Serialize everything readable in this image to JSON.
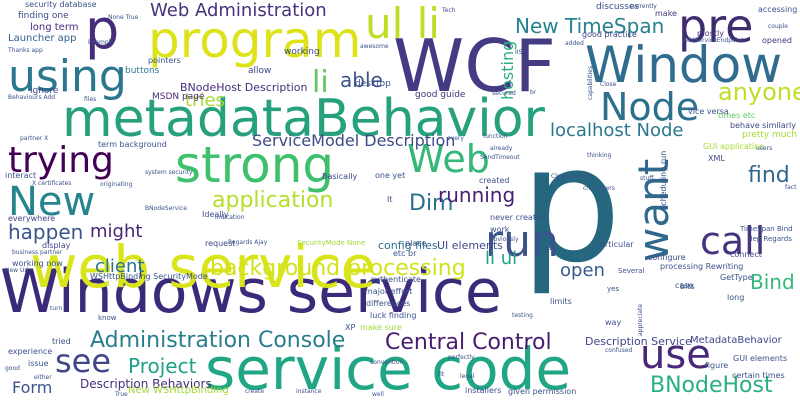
{
  "title": "",
  "words": [
    {
      "text": "Windows service",
      "color": "#3b2a7a"
    },
    {
      "text": "p",
      "color": "#25677f"
    },
    {
      "text": "web service",
      "color": "#d9e41a"
    },
    {
      "text": "metadataBehavior",
      "color": "#27a07e"
    },
    {
      "text": "service code",
      "color": "#21a685"
    },
    {
      "text": "strong",
      "color": "#3ec06d"
    },
    {
      "text": "WCF",
      "color": "#433c84"
    },
    {
      "text": "Window",
      "color": "#2f6c8e"
    },
    {
      "text": "program",
      "color": "#dde318"
    },
    {
      "text": "p",
      "color": "#472c7a"
    },
    {
      "text": "Node",
      "color": "#2d708e"
    },
    {
      "text": "pre",
      "color": "#3e2c6e"
    },
    {
      "text": "ul li",
      "color": "#c0dd23"
    },
    {
      "text": "using",
      "color": "#2a778e"
    },
    {
      "text": "trying",
      "color": "#440154"
    },
    {
      "text": "New",
      "color": "#25858e"
    },
    {
      "text": "Web",
      "color": "#35b779"
    },
    {
      "text": "want",
      "color": "#31688e"
    },
    {
      "text": "run",
      "color": "#3b528b"
    },
    {
      "text": "use",
      "color": "#482878"
    },
    {
      "text": "call",
      "color": "#46337e"
    },
    {
      "text": "see",
      "color": "#3f4788"
    },
    {
      "text": "Web Administration",
      "color": "#46327e"
    },
    {
      "text": "li",
      "color": "#5ec962"
    },
    {
      "text": "able",
      "color": "#3b528b"
    },
    {
      "text": "New TimeSpan",
      "color": "#26828e"
    },
    {
      "text": "anyone",
      "color": "#bddf26"
    },
    {
      "text": "find",
      "color": "#31688e"
    },
    {
      "text": "Bind",
      "color": "#35b779"
    },
    {
      "text": "background processing",
      "color": "#d2e21b"
    },
    {
      "text": "Administration Console",
      "color": "#287d8e"
    },
    {
      "text": "Central Control",
      "color": "#481d6f"
    },
    {
      "text": "localhost Node",
      "color": "#2a788e"
    },
    {
      "text": "application",
      "color": "#b5de2b"
    },
    {
      "text": "Project",
      "color": "#1fa187"
    },
    {
      "text": "BNodeHost",
      "color": "#2ab07f"
    },
    {
      "text": "ServiceModel Description",
      "color": "#3e4a89"
    },
    {
      "text": "client",
      "color": "#2c728e"
    },
    {
      "text": "might",
      "color": "#482475"
    },
    {
      "text": "happen",
      "color": "#39568c"
    },
    {
      "text": "Dim",
      "color": "#2d708e"
    },
    {
      "text": "running",
      "color": "#482173"
    },
    {
      "text": "li ul",
      "color": "#20a386"
    },
    {
      "text": "open",
      "color": "#38598c"
    },
    {
      "text": "tries",
      "color": "#a8db34"
    },
    {
      "text": "hosting",
      "color": "#2ab07f"
    },
    {
      "text": "Form",
      "color": "#3b528b"
    },
    {
      "text": "Description Service",
      "color": "#404688"
    },
    {
      "text": "MetadataBehavior",
      "color": "#3e4a89"
    },
    {
      "text": "Description Behaviors",
      "color": "#472d7b"
    },
    {
      "text": "New WSHttpBinding",
      "color": "#a0da39"
    },
    {
      "text": "BNodeHost Description",
      "color": "#472d7b"
    },
    {
      "text": "config files",
      "color": "#2e6f8e"
    },
    {
      "text": "UI elements",
      "color": "#3e4a89"
    },
    {
      "text": "security database",
      "color": "#3b528b"
    },
    {
      "text": "finding one",
      "color": "#3e4989"
    },
    {
      "text": "long term",
      "color": "#482878"
    },
    {
      "text": "Launcher app",
      "color": "#34608d"
    },
    {
      "text": "ignore",
      "color": "#3e4989"
    },
    {
      "text": "buttons",
      "color": "#2a788e"
    },
    {
      "text": "pointers",
      "color": "#3b528b"
    },
    {
      "text": "MSDN page",
      "color": "#482878"
    },
    {
      "text": "allow",
      "color": "#404688"
    },
    {
      "text": "working",
      "color": "#3e4a89"
    },
    {
      "text": "desktop",
      "color": "#3b528b"
    },
    {
      "text": "good guide",
      "color": "#46327e"
    },
    {
      "text": "discusses",
      "color": "#3b528b"
    },
    {
      "text": "good practice",
      "color": "#3f4788"
    },
    {
      "text": "make",
      "color": "#443983"
    },
    {
      "text": "mostly",
      "color": "#453882"
    },
    {
      "text": "accessing",
      "color": "#3b528b"
    },
    {
      "text": "opened",
      "color": "#46337e"
    },
    {
      "text": "vice versa",
      "color": "#3b528b"
    },
    {
      "text": "times etc",
      "color": "#5ec962"
    },
    {
      "text": "behave similarly",
      "color": "#3f4788"
    },
    {
      "text": "pretty much",
      "color": "#a5db36"
    },
    {
      "text": "term background",
      "color": "#3b528b"
    },
    {
      "text": "Basically",
      "color": "#3e4a89"
    },
    {
      "text": "interact",
      "color": "#3b528b"
    },
    {
      "text": "one yet",
      "color": "#3b528b"
    },
    {
      "text": "created",
      "color": "#3b528b"
    },
    {
      "text": "GUI application",
      "color": "#a8db34"
    },
    {
      "text": "scheduling run",
      "color": "#3b528b"
    },
    {
      "text": "XML",
      "color": "#3f4788"
    },
    {
      "text": "everywhere",
      "color": "#404688"
    },
    {
      "text": "Ideally",
      "color": "#3b528b"
    },
    {
      "text": "display",
      "color": "#3e4a89"
    },
    {
      "text": "working now",
      "color": "#3b528b"
    },
    {
      "text": "request",
      "color": "#404688"
    },
    {
      "text": "never created",
      "color": "#3b528b"
    },
    {
      "text": "particular",
      "color": "#3b528b"
    },
    {
      "text": "configure",
      "color": "#3e4a89"
    },
    {
      "text": "processing Rewriting",
      "color": "#3b528b"
    },
    {
      "text": "GetType",
      "color": "#3b528b"
    },
    {
      "text": "connect",
      "color": "#3e4a89"
    },
    {
      "text": "case",
      "color": "#3b528b"
    },
    {
      "text": "WSHttpBinding SecurityMode",
      "color": "#3b528b"
    },
    {
      "text": "authenticate",
      "color": "#3b528b"
    },
    {
      "text": "major effort",
      "color": "#3b528b"
    },
    {
      "text": "differences",
      "color": "#3b528b"
    },
    {
      "text": "luck finding",
      "color": "#3b528b"
    },
    {
      "text": "XP",
      "color": "#3b528b"
    },
    {
      "text": "make sure",
      "color": "#a0da39"
    },
    {
      "text": "limits",
      "color": "#3b528b"
    },
    {
      "text": "bits",
      "color": "#3b528b"
    },
    {
      "text": "long",
      "color": "#3b528b"
    },
    {
      "text": "experience",
      "color": "#3b528b"
    },
    {
      "text": "issue",
      "color": "#3b528b"
    },
    {
      "text": "installers",
      "color": "#3b528b"
    },
    {
      "text": "given permission",
      "color": "#3b528b"
    },
    {
      "text": "figure",
      "color": "#3b528b"
    },
    {
      "text": "certain times",
      "color": "#3b528b"
    },
    {
      "text": "GUI elements",
      "color": "#3b528b"
    },
    {
      "text": "way",
      "color": "#3b528b"
    },
    {
      "text": "tried",
      "color": "#3b528b"
    },
    {
      "text": "etc br",
      "color": "#3b528b"
    },
    {
      "text": "Several",
      "color": "#3b528b"
    },
    {
      "text": "know",
      "color": "#3b528b"
    },
    {
      "text": "yes",
      "color": "#3b528b"
    },
    {
      "text": "TimeSpan Bind",
      "color": "#3b528b"
    },
    {
      "text": "dep Regards",
      "color": "#3b528b"
    },
    {
      "text": "Tech",
      "color": "#3b528b"
    },
    {
      "text": "couple",
      "color": "#3b528b"
    },
    {
      "text": "currently",
      "color": "#3b528b"
    },
    {
      "text": "None True",
      "color": "#3b528b"
    },
    {
      "text": "Thanks app",
      "color": "#3b528b"
    },
    {
      "text": "Example",
      "color": "#3b528b"
    },
    {
      "text": "awesome",
      "color": "#3b528b"
    },
    {
      "text": "IIS",
      "color": "#3b528b"
    },
    {
      "text": "AddServiceEndpoint",
      "color": "#3b528b"
    },
    {
      "text": "added",
      "color": "#3b528b"
    },
    {
      "text": "Close",
      "color": "#3b528b"
    },
    {
      "text": "capabilities",
      "color": "#3b528b"
    },
    {
      "text": "secured",
      "color": "#3b528b"
    },
    {
      "text": "br",
      "color": "#3b528b"
    },
    {
      "text": "function",
      "color": "#3b528b"
    },
    {
      "text": "already",
      "color": "#3b528b"
    },
    {
      "text": "SendTimeout",
      "color": "#3b528b"
    },
    {
      "text": "every",
      "color": "#3b528b"
    },
    {
      "text": "thinking",
      "color": "#3b528b"
    },
    {
      "text": "stuff",
      "color": "#3b528b"
    },
    {
      "text": "users",
      "color": "#3b528b"
    },
    {
      "text": "fact",
      "color": "#3b528b"
    },
    {
      "text": "Behaviours Add",
      "color": "#3b528b"
    },
    {
      "text": "files",
      "color": "#3b528b"
    },
    {
      "text": "partner X",
      "color": "#3b528b"
    },
    {
      "text": "X certificates",
      "color": "#3b528b"
    },
    {
      "text": "originating",
      "color": "#3b528b"
    },
    {
      "text": "system security",
      "color": "#3b528b"
    },
    {
      "text": "BNodeService",
      "color": "#3b528b"
    },
    {
      "text": "indication",
      "color": "#3b528b"
    },
    {
      "text": "Regards Ajay",
      "color": "#3b528b"
    },
    {
      "text": "SecurityMode None",
      "color": "#a0da39"
    },
    {
      "text": "place",
      "color": "#3b528b"
    },
    {
      "text": "It",
      "color": "#3b528b"
    },
    {
      "text": "work",
      "color": "#3b528b"
    },
    {
      "text": "obviously",
      "color": "#3b528b"
    },
    {
      "text": "keep",
      "color": "#3b528b"
    },
    {
      "text": "characters",
      "color": "#3b528b"
    },
    {
      "text": "CloseTimeout",
      "color": "#3b528b"
    },
    {
      "text": "business partner",
      "color": "#3b528b"
    },
    {
      "text": "New Uri",
      "color": "#3b528b"
    },
    {
      "text": "turn",
      "color": "#3b528b"
    },
    {
      "text": "testing",
      "color": "#3b528b"
    },
    {
      "text": "appreciate",
      "color": "#3b528b"
    },
    {
      "text": "confused",
      "color": "#3b528b"
    },
    {
      "text": "perfectly",
      "color": "#3b528b"
    },
    {
      "text": "convention",
      "color": "#3b528b"
    },
    {
      "text": "fit",
      "color": "#3b528b"
    },
    {
      "text": "legal",
      "color": "#3b528b"
    },
    {
      "text": "well",
      "color": "#3b528b"
    },
    {
      "text": "True",
      "color": "#3b528b"
    },
    {
      "text": "good",
      "color": "#3b528b"
    },
    {
      "text": "either",
      "color": "#3b528b"
    },
    {
      "text": "create",
      "color": "#3b528b"
    },
    {
      "text": "instance",
      "color": "#3b528b"
    }
  ]
}
